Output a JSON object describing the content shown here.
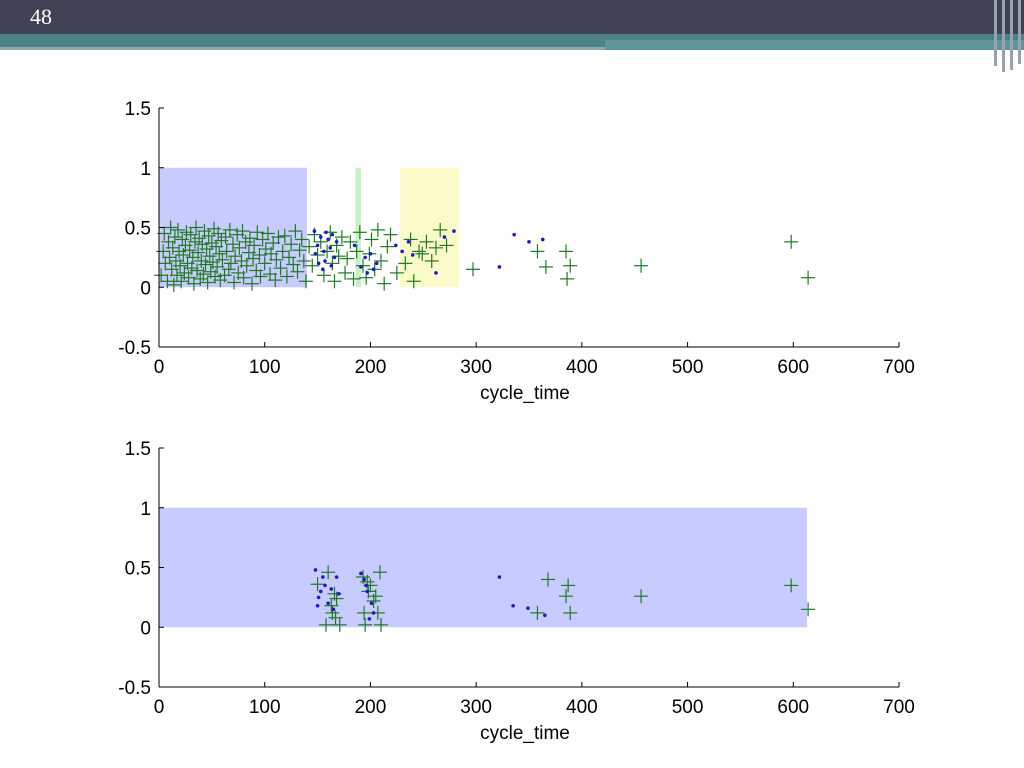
{
  "slide": {
    "number": "48"
  },
  "colors": {
    "header": "#3f4254",
    "stripe": "#4f8286",
    "plus": "#1f7a1f",
    "dot": "#1a1acc",
    "band_blue": "#c8cbff",
    "band_green": "#c9f0c9",
    "band_yellow": "#fbfbc9"
  },
  "chart_data": [
    {
      "type": "scatter",
      "xlabel": "cycle_time",
      "xlim": [
        0,
        700
      ],
      "ylim": [
        -0.5,
        1.5
      ],
      "xticks": [
        0,
        100,
        200,
        300,
        400,
        500,
        600,
        700
      ],
      "yticks": [
        -0.5,
        0,
        0.5,
        1,
        1.5
      ],
      "ytick_labels": [
        "-0.5",
        "0",
        "0.5",
        "1",
        "1.5"
      ],
      "regions": [
        {
          "x0": 0,
          "x1": 140,
          "y0": 0,
          "y1": 1,
          "color": "#c8cbff"
        },
        {
          "x0": 186,
          "x1": 191,
          "y0": 0,
          "y1": 1,
          "color": "#c9f0c9"
        },
        {
          "x0": 228,
          "x1": 284,
          "y0": 0,
          "y1": 1,
          "color": "#fbfbc9"
        }
      ],
      "plus_points": [
        [
          2,
          0.1
        ],
        [
          4,
          0.3
        ],
        [
          5,
          0.45
        ],
        [
          6,
          0.2
        ],
        [
          8,
          0.05
        ],
        [
          9,
          0.38
        ],
        [
          10,
          0.25
        ],
        [
          11,
          0.5
        ],
        [
          12,
          0.15
        ],
        [
          13,
          0.33
        ],
        [
          14,
          0.02
        ],
        [
          15,
          0.42
        ],
        [
          16,
          0.22
        ],
        [
          17,
          0.1
        ],
        [
          18,
          0.48
        ],
        [
          19,
          0.3
        ],
        [
          20,
          0.18
        ],
        [
          21,
          0.05
        ],
        [
          22,
          0.4
        ],
        [
          23,
          0.27
        ],
        [
          24,
          0.12
        ],
        [
          25,
          0.35
        ],
        [
          26,
          0.46
        ],
        [
          27,
          0.2
        ],
        [
          28,
          0.08
        ],
        [
          29,
          0.31
        ],
        [
          30,
          0.44
        ],
        [
          31,
          0.16
        ],
        [
          32,
          0.25
        ],
        [
          33,
          0.03
        ],
        [
          34,
          0.38
        ],
        [
          35,
          0.5
        ],
        [
          36,
          0.14
        ],
        [
          37,
          0.29
        ],
        [
          38,
          0.41
        ],
        [
          39,
          0.07
        ],
        [
          40,
          0.22
        ],
        [
          41,
          0.36
        ],
        [
          42,
          0.11
        ],
        [
          43,
          0.47
        ],
        [
          44,
          0.19
        ],
        [
          45,
          0.32
        ],
        [
          46,
          0.04
        ],
        [
          47,
          0.43
        ],
        [
          48,
          0.26
        ],
        [
          49,
          0.13
        ],
        [
          50,
          0.37
        ],
        [
          51,
          0.21
        ],
        [
          52,
          0.49
        ],
        [
          53,
          0.09
        ],
        [
          54,
          0.34
        ],
        [
          55,
          0.17
        ],
        [
          56,
          0.45
        ],
        [
          57,
          0.28
        ],
        [
          58,
          0.06
        ],
        [
          59,
          0.39
        ],
        [
          60,
          0.23
        ],
        [
          62,
          0.1
        ],
        [
          63,
          0.42
        ],
        [
          64,
          0.3
        ],
        [
          66,
          0.15
        ],
        [
          67,
          0.48
        ],
        [
          68,
          0.2
        ],
        [
          70,
          0.36
        ],
        [
          71,
          0.04
        ],
        [
          72,
          0.26
        ],
        [
          74,
          0.44
        ],
        [
          75,
          0.12
        ],
        [
          76,
          0.33
        ],
        [
          78,
          0.22
        ],
        [
          79,
          0.47
        ],
        [
          80,
          0.08
        ],
        [
          82,
          0.38
        ],
        [
          83,
          0.18
        ],
        [
          85,
          0.29
        ],
        [
          86,
          0.41
        ],
        [
          88,
          0.03
        ],
        [
          89,
          0.24
        ],
        [
          90,
          0.35
        ],
        [
          92,
          0.14
        ],
        [
          93,
          0.46
        ],
        [
          95,
          0.27
        ],
        [
          96,
          0.09
        ],
        [
          98,
          0.4
        ],
        [
          100,
          0.2
        ],
        [
          101,
          0.32
        ],
        [
          103,
          0.45
        ],
        [
          105,
          0.11
        ],
        [
          106,
          0.28
        ],
        [
          108,
          0.37
        ],
        [
          110,
          0.06
        ],
        [
          111,
          0.23
        ],
        [
          113,
          0.42
        ],
        [
          115,
          0.16
        ],
        [
          117,
          0.3
        ],
        [
          119,
          0.43
        ],
        [
          121,
          0.09
        ],
        [
          123,
          0.25
        ],
        [
          125,
          0.36
        ],
        [
          127,
          0.19
        ],
        [
          129,
          0.47
        ],
        [
          131,
          0.13
        ],
        [
          133,
          0.31
        ],
        [
          135,
          0.4
        ],
        [
          137,
          0.22
        ],
        [
          139,
          0.05
        ],
        [
          142,
          0.34
        ],
        [
          145,
          0.18
        ],
        [
          147,
          0.44
        ],
        [
          150,
          0.27
        ],
        [
          153,
          0.38
        ],
        [
          156,
          0.1
        ],
        [
          159,
          0.3
        ],
        [
          162,
          0.46
        ],
        [
          164,
          0.2
        ],
        [
          166,
          0.05
        ],
        [
          168,
          0.35
        ],
        [
          170,
          0.26
        ],
        [
          173,
          0.42
        ],
        [
          176,
          0.12
        ],
        [
          178,
          0.24
        ],
        [
          181,
          0.38
        ],
        [
          184,
          0.07
        ],
        [
          187,
          0.3
        ],
        [
          190,
          0.46
        ],
        [
          193,
          0.18
        ],
        [
          196,
          0.08
        ],
        [
          199,
          0.28
        ],
        [
          201,
          0.4
        ],
        [
          204,
          0.15
        ],
        [
          207,
          0.48
        ],
        [
          210,
          0.22
        ],
        [
          213,
          0.03
        ],
        [
          216,
          0.34
        ],
        [
          219,
          0.44
        ],
        [
          225,
          0.12
        ],
        [
          233,
          0.2
        ],
        [
          238,
          0.4
        ],
        [
          241,
          0.05
        ],
        [
          246,
          0.3
        ],
        [
          249,
          0.28
        ],
        [
          253,
          0.38
        ],
        [
          258,
          0.22
        ],
        [
          262,
          0.33
        ],
        [
          266,
          0.48
        ],
        [
          272,
          0.35
        ],
        [
          297,
          0.15
        ],
        [
          358,
          0.3
        ],
        [
          366,
          0.17
        ],
        [
          385,
          0.3
        ],
        [
          386,
          0.07
        ],
        [
          389,
          0.18
        ],
        [
          456,
          0.18
        ],
        [
          598,
          0.38
        ],
        [
          614,
          0.08
        ]
      ],
      "dot_points": [
        [
          147,
          0.47
        ],
        [
          150,
          0.35
        ],
        [
          153,
          0.42
        ],
        [
          156,
          0.3
        ],
        [
          158,
          0.46
        ],
        [
          160,
          0.4
        ],
        [
          162,
          0.33
        ],
        [
          164,
          0.44
        ],
        [
          166,
          0.25
        ],
        [
          168,
          0.38
        ],
        [
          151,
          0.2
        ],
        [
          155,
          0.15
        ],
        [
          148,
          0.28
        ],
        [
          157,
          0.22
        ],
        [
          163,
          0.18
        ],
        [
          185,
          0.35
        ],
        [
          191,
          0.17
        ],
        [
          195,
          0.25
        ],
        [
          197,
          0.12
        ],
        [
          200,
          0.28
        ],
        [
          203,
          0.15
        ],
        [
          206,
          0.2
        ],
        [
          224,
          0.35
        ],
        [
          230,
          0.3
        ],
        [
          236,
          0.38
        ],
        [
          240,
          0.27
        ],
        [
          262,
          0.12
        ],
        [
          270,
          0.42
        ],
        [
          279,
          0.47
        ],
        [
          322,
          0.17
        ],
        [
          336,
          0.44
        ],
        [
          350,
          0.38
        ],
        [
          363,
          0.4
        ]
      ]
    },
    {
      "type": "scatter",
      "xlabel": "cycle_time",
      "xlim": [
        0,
        700
      ],
      "ylim": [
        -0.5,
        1.5
      ],
      "xticks": [
        0,
        100,
        200,
        300,
        400,
        500,
        600,
        700
      ],
      "yticks": [
        -0.5,
        0,
        0.5,
        1,
        1.5
      ],
      "ytick_labels": [
        "-0.5",
        "0",
        "0.5",
        "1",
        "1.5"
      ],
      "regions": [
        {
          "x0": 0,
          "x1": 613,
          "y0": 0,
          "y1": 1,
          "color": "#c8cbff"
        }
      ],
      "plus_points": [
        [
          150,
          0.36
        ],
        [
          158,
          0.02
        ],
        [
          160,
          0.46
        ],
        [
          163,
          0.18
        ],
        [
          164,
          0.12
        ],
        [
          166,
          0.28
        ],
        [
          167,
          0.08
        ],
        [
          168,
          0.24
        ],
        [
          171,
          0.02
        ],
        [
          193,
          0.42
        ],
        [
          194,
          0.12
        ],
        [
          195,
          0.02
        ],
        [
          197,
          0.38
        ],
        [
          198,
          0.3
        ],
        [
          200,
          0.35
        ],
        [
          203,
          0.22
        ],
        [
          205,
          0.26
        ],
        [
          207,
          0.12
        ],
        [
          209,
          0.46
        ],
        [
          210,
          0.02
        ],
        [
          358,
          0.12
        ],
        [
          368,
          0.4
        ],
        [
          385,
          0.26
        ],
        [
          387,
          0.35
        ],
        [
          389,
          0.12
        ],
        [
          456,
          0.26
        ],
        [
          598,
          0.35
        ],
        [
          614,
          0.15
        ]
      ],
      "dot_points": [
        [
          148,
          0.48
        ],
        [
          150,
          0.18
        ],
        [
          151,
          0.25
        ],
        [
          153,
          0.3
        ],
        [
          155,
          0.42
        ],
        [
          157,
          0.35
        ],
        [
          160,
          0.2
        ],
        [
          163,
          0.32
        ],
        [
          165,
          0.15
        ],
        [
          168,
          0.42
        ],
        [
          170,
          0.28
        ],
        [
          191,
          0.45
        ],
        [
          194,
          0.4
        ],
        [
          196,
          0.35
        ],
        [
          197,
          0.3
        ],
        [
          199,
          0.07
        ],
        [
          201,
          0.2
        ],
        [
          203,
          0.12
        ],
        [
          322,
          0.42
        ],
        [
          335,
          0.18
        ],
        [
          349,
          0.16
        ],
        [
          365,
          0.1
        ]
      ]
    }
  ]
}
